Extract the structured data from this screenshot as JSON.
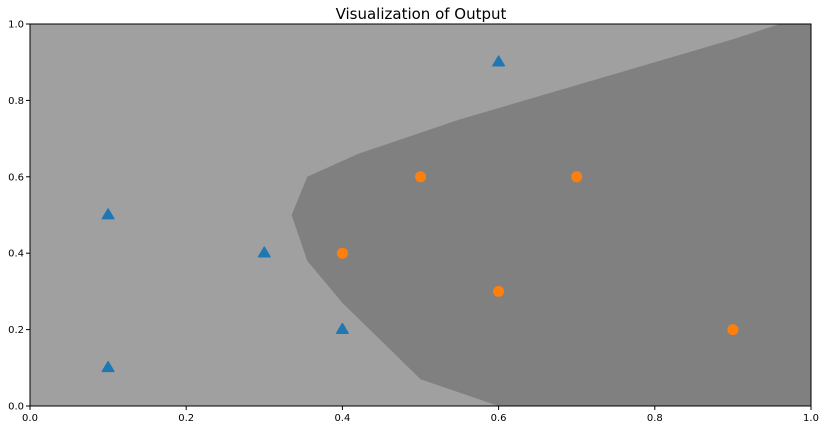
{
  "chart_data": {
    "type": "scatter",
    "title": "Visualization of Output",
    "xlabel": "",
    "ylabel": "",
    "xlim": [
      0,
      1
    ],
    "ylim": [
      0,
      1
    ],
    "xticks": [
      "0.0",
      "0.2",
      "0.4",
      "0.6",
      "0.8",
      "1.0"
    ],
    "yticks": [
      "0.0",
      "0.2",
      "0.4",
      "0.6",
      "0.8",
      "1.0"
    ],
    "grid": false,
    "legend": "none",
    "background_regions": {
      "light_region_color": "#a0a0a0",
      "dark_region_color": "#808080",
      "boundary": [
        {
          "x": 0.6,
          "y": 0.0
        },
        {
          "x": 0.5,
          "y": 0.07
        },
        {
          "x": 0.45,
          "y": 0.17
        },
        {
          "x": 0.4,
          "y": 0.27
        },
        {
          "x": 0.355,
          "y": 0.38
        },
        {
          "x": 0.335,
          "y": 0.5
        },
        {
          "x": 0.355,
          "y": 0.6
        },
        {
          "x": 0.42,
          "y": 0.66
        },
        {
          "x": 0.55,
          "y": 0.75
        },
        {
          "x": 0.7,
          "y": 0.84
        },
        {
          "x": 0.8,
          "y": 0.9
        },
        {
          "x": 0.9,
          "y": 0.96
        },
        {
          "x": 0.96,
          "y": 1.0
        }
      ]
    },
    "series": [
      {
        "marker": "triangle",
        "color": "#1f77b4",
        "points": [
          {
            "x": 0.1,
            "y": 0.1
          },
          {
            "x": 0.1,
            "y": 0.5
          },
          {
            "x": 0.3,
            "y": 0.4
          },
          {
            "x": 0.4,
            "y": 0.2
          },
          {
            "x": 0.6,
            "y": 0.9
          }
        ]
      },
      {
        "marker": "circle",
        "color": "#ff7f0e",
        "points": [
          {
            "x": 0.4,
            "y": 0.4
          },
          {
            "x": 0.5,
            "y": 0.6
          },
          {
            "x": 0.6,
            "y": 0.3
          },
          {
            "x": 0.7,
            "y": 0.6
          },
          {
            "x": 0.9,
            "y": 0.2
          }
        ]
      }
    ]
  }
}
